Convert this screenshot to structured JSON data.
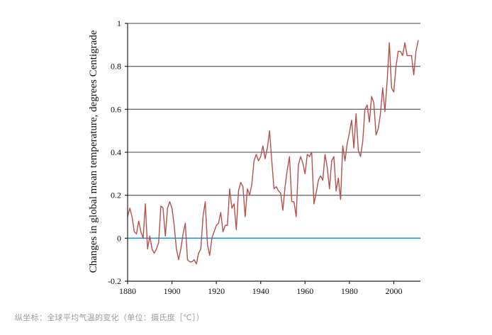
{
  "chart_data": {
    "type": "line",
    "title": "",
    "xlabel": "",
    "ylabel": "Changes in global mean temperature, degrees Centigrade",
    "xlim": [
      1880,
      2012
    ],
    "ylim": [
      -0.2,
      1
    ],
    "x_ticks": [
      1880,
      1900,
      1920,
      1940,
      1960,
      1980,
      2000
    ],
    "x_tick_labels": [
      "1880",
      "1900",
      "1920",
      "1940",
      "1960",
      "1980",
      "2000"
    ],
    "y_ticks": [
      -0.2,
      0,
      0.2,
      0.4,
      0.6,
      0.8,
      1
    ],
    "y_tick_labels": [
      "-0.2",
      "0",
      "0.2",
      "0.4",
      "0.6",
      "0.8",
      "1"
    ],
    "grid": "horizontal",
    "reference_line": {
      "y": 0,
      "color": "#1b9bc9"
    },
    "series": [
      {
        "name": "Global mean temperature change",
        "color": "#b5504d",
        "x": [
          1880,
          1881,
          1882,
          1883,
          1884,
          1885,
          1886,
          1887,
          1888,
          1889,
          1890,
          1891,
          1892,
          1893,
          1894,
          1895,
          1896,
          1897,
          1898,
          1899,
          1900,
          1901,
          1902,
          1903,
          1904,
          1905,
          1906,
          1907,
          1908,
          1909,
          1910,
          1911,
          1912,
          1913,
          1914,
          1915,
          1916,
          1917,
          1918,
          1919,
          1920,
          1921,
          1922,
          1923,
          1924,
          1925,
          1926,
          1927,
          1928,
          1929,
          1930,
          1931,
          1932,
          1933,
          1934,
          1935,
          1936,
          1937,
          1938,
          1939,
          1940,
          1941,
          1942,
          1943,
          1944,
          1945,
          1946,
          1947,
          1948,
          1949,
          1950,
          1951,
          1952,
          1953,
          1954,
          1955,
          1956,
          1957,
          1958,
          1959,
          1960,
          1961,
          1962,
          1963,
          1964,
          1965,
          1966,
          1967,
          1968,
          1969,
          1970,
          1971,
          1972,
          1973,
          1974,
          1975,
          1976,
          1977,
          1978,
          1979,
          1980,
          1981,
          1982,
          1983,
          1984,
          1985,
          1986,
          1987,
          1988,
          1989,
          1990,
          1991,
          1992,
          1993,
          1994,
          1995,
          1996,
          1997,
          1998,
          1999,
          2000,
          2001,
          2002,
          2003,
          2004,
          2005,
          2006,
          2007,
          2008,
          2009,
          2010,
          2011
        ],
        "values": [
          0.1,
          0.14,
          0.1,
          0.03,
          0.02,
          0.08,
          0.03,
          0.0,
          0.16,
          -0.05,
          0.01,
          -0.05,
          -0.07,
          -0.05,
          -0.02,
          0.15,
          0.14,
          0.01,
          0.14,
          0.17,
          0.14,
          0.06,
          -0.05,
          -0.1,
          -0.05,
          0.02,
          0.07,
          -0.1,
          -0.11,
          -0.11,
          -0.1,
          -0.12,
          -0.07,
          -0.05,
          0.1,
          0.17,
          -0.03,
          -0.08,
          0.0,
          0.03,
          0.06,
          0.07,
          0.12,
          0.03,
          0.06,
          0.06,
          0.23,
          0.14,
          0.16,
          0.04,
          0.22,
          0.26,
          0.24,
          0.1,
          0.23,
          0.2,
          0.25,
          0.36,
          0.39,
          0.36,
          0.38,
          0.43,
          0.37,
          0.42,
          0.5,
          0.36,
          0.23,
          0.24,
          0.22,
          0.21,
          0.13,
          0.24,
          0.32,
          0.38,
          0.17,
          0.17,
          0.1,
          0.34,
          0.38,
          0.35,
          0.3,
          0.39,
          0.38,
          0.4,
          0.16,
          0.21,
          0.27,
          0.29,
          0.27,
          0.39,
          0.33,
          0.23,
          0.36,
          0.38,
          0.22,
          0.28,
          0.18,
          0.43,
          0.36,
          0.44,
          0.49,
          0.55,
          0.42,
          0.58,
          0.41,
          0.38,
          0.45,
          0.6,
          0.62,
          0.54,
          0.66,
          0.63,
          0.48,
          0.51,
          0.58,
          0.7,
          0.59,
          0.73,
          0.91,
          0.7,
          0.68,
          0.8,
          0.87,
          0.87,
          0.85,
          0.91,
          0.85,
          0.85,
          0.85,
          0.76,
          0.87,
          0.92
        ]
      }
    ]
  },
  "caption": "纵坐标：全球平均气温的变化（单位：摄氏度［℃］）"
}
